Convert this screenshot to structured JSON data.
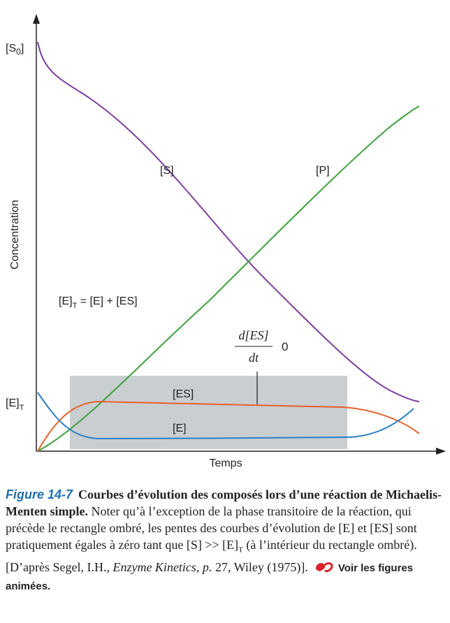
{
  "figure": {
    "y_axis_label": "Concentration",
    "x_axis_label": "Temps",
    "s0_label": {
      "main": "[S",
      "sub": "0",
      "end": "]"
    },
    "et_label": {
      "main": "[E]",
      "sub": "T"
    },
    "curve_labels": {
      "s": "[S]",
      "p": "[P]",
      "es": "[ES]",
      "e": "[E]"
    },
    "equation": {
      "main": "[E]",
      "sub": "T",
      "rest": " = [E] + [ES]"
    },
    "derivative": {
      "numerator": "d[ES]",
      "denominator": "dt",
      "value": "0"
    }
  },
  "caption": {
    "figure_label": "Figure 14-7",
    "bold": "Courbes d’évolution des composés lors d’une réaction de Michaelis-Menten simple.",
    "text_1": " Noter qu’à l’exception de la phase transitoire de la réaction, qui précède le rectangle ombré, les pentes des courbes d’évolution de [E] et [ES] sont pratiquement égales à zéro tant que [S] >> [E]",
    "sub": "T",
    "text_2": " (à l’intérieur du rectangle ombré). [D’après Segel, I.H., ",
    "italic": "Enzyme Kinetics, p.",
    "text_3": " 27, Wiley (1975)].",
    "link": "Voir les figures animées."
  }
}
